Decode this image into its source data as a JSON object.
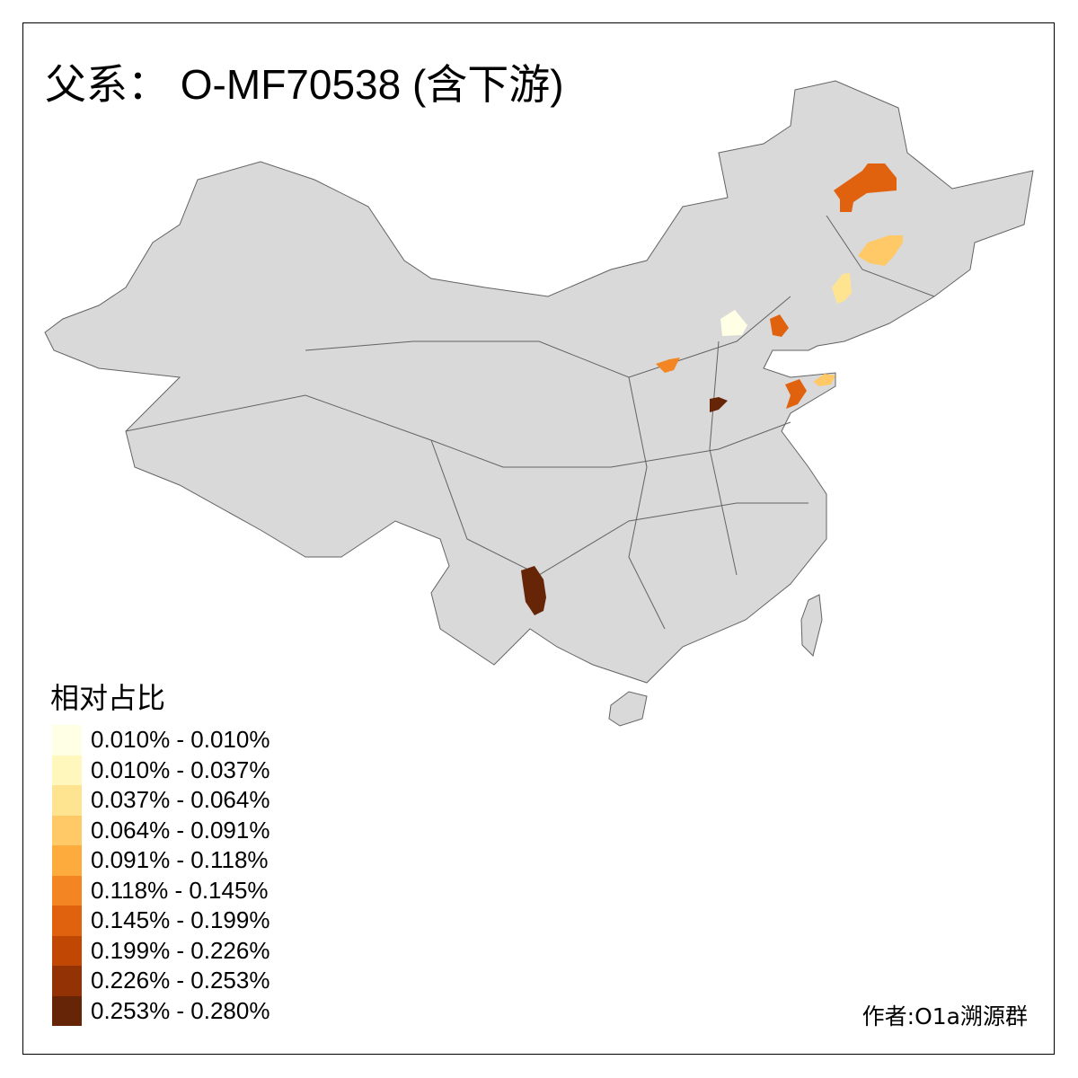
{
  "title": "父系： O-MF70538 (含下游)",
  "legend": {
    "title": "相对占比",
    "items": [
      {
        "label": "0.010% - 0.010%",
        "color": "#FFFFE5"
      },
      {
        "label": "0.010% - 0.037%",
        "color": "#FFF7BC"
      },
      {
        "label": "0.037% - 0.064%",
        "color": "#FEE391"
      },
      {
        "label": "0.064% - 0.091%",
        "color": "#FEC966"
      },
      {
        "label": "0.091% - 0.118%",
        "color": "#FDAB3D"
      },
      {
        "label": "0.118% - 0.145%",
        "color": "#F38522"
      },
      {
        "label": "0.145% - 0.199%",
        "color": "#E0620F"
      },
      {
        "label": "0.199% - 0.226%",
        "color": "#C04704"
      },
      {
        "label": "0.226% - 0.253%",
        "color": "#933204"
      },
      {
        "label": "0.253% - 0.280%",
        "color": "#662506"
      }
    ]
  },
  "map": {
    "base_color": "#D9D9D9",
    "border_color": "#636363"
  },
  "author": "作者:O1a溯源群"
}
